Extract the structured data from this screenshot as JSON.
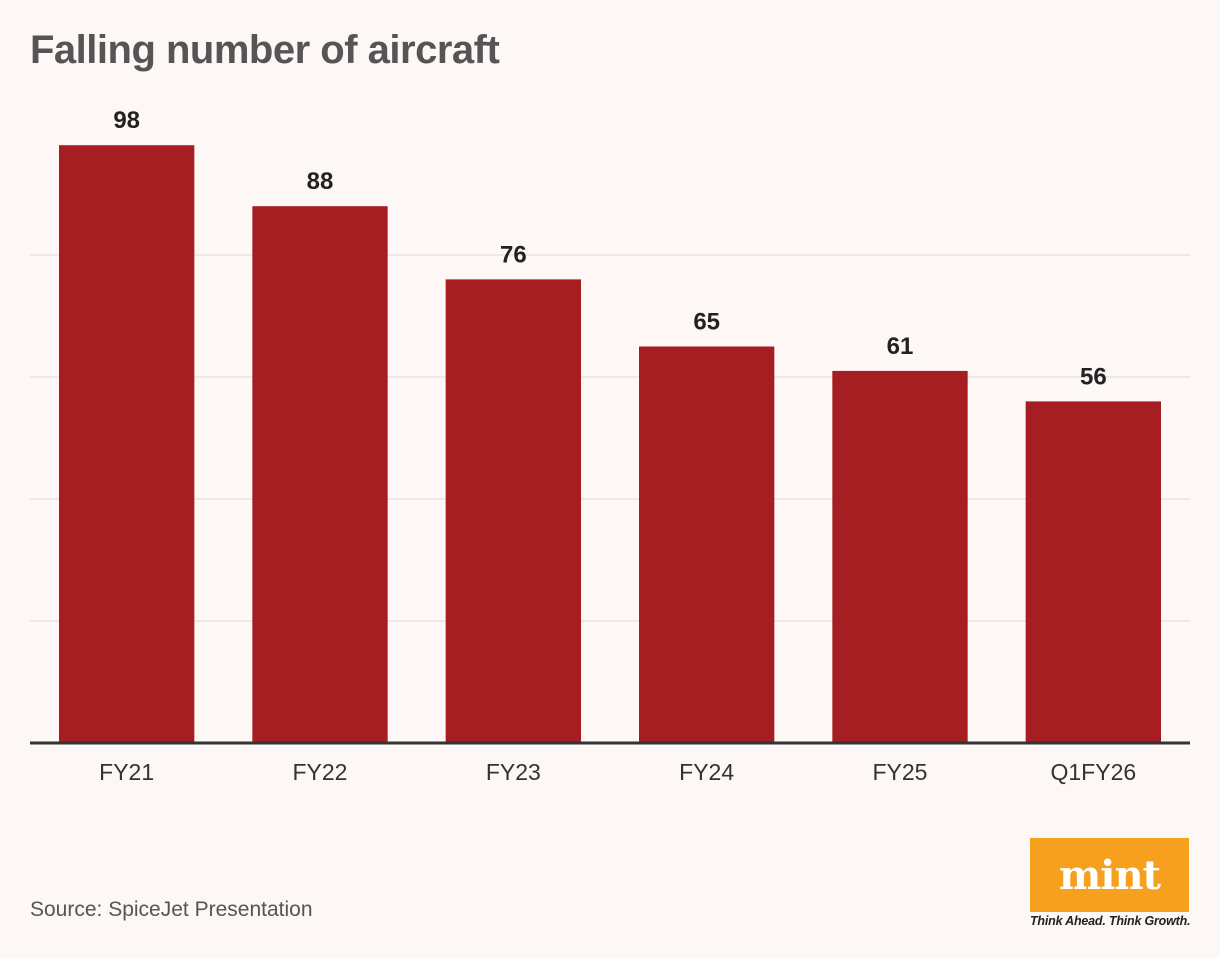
{
  "chart_data": {
    "type": "bar",
    "title": "Falling number of aircraft",
    "categories": [
      "FY21",
      "FY22",
      "FY23",
      "FY24",
      "FY25",
      "Q1FY26"
    ],
    "values": [
      98,
      88,
      76,
      65,
      61,
      56
    ],
    "ylim": [
      0,
      100
    ],
    "grid": true,
    "bar_color": "#a51e22"
  },
  "source": "Source: SpiceJet Presentation",
  "logo": {
    "word": "mint",
    "tagline": "Think Ahead. Think Growth.",
    "color": "#f7a01d"
  }
}
